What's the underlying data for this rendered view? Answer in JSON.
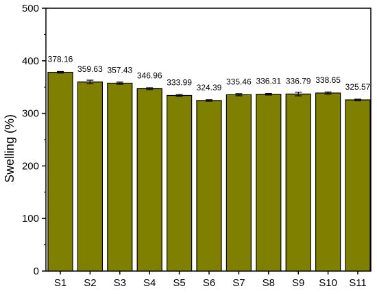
{
  "chart_data": {
    "type": "bar",
    "title": "",
    "xlabel": "",
    "ylabel": "Swelling (%)",
    "categories": [
      "S1",
      "S2",
      "S3",
      "S4",
      "S5",
      "S6",
      "S7",
      "S8",
      "S9",
      "S10",
      "S11"
    ],
    "values": [
      378.16,
      359.63,
      357.43,
      346.96,
      333.99,
      324.39,
      335.46,
      336.31,
      336.79,
      338.65,
      325.57
    ],
    "value_labels": [
      "378.16",
      "359.63",
      "357.43",
      "346.96",
      "333.99",
      "324.39",
      "335.46",
      "336.31",
      "336.79",
      "338.65",
      "325.57"
    ],
    "errors": [
      1.5,
      3.5,
      2.0,
      2.0,
      2.0,
      1.5,
      2.0,
      1.5,
      3.5,
      2.0,
      1.5
    ],
    "ylim": [
      0,
      500
    ],
    "yticks": [
      0,
      100,
      200,
      300,
      400,
      500
    ],
    "ytick_labels": [
      "0",
      "100",
      "200",
      "300",
      "400",
      "500"
    ],
    "grid": false,
    "legend": "none",
    "bar_color": "#808000",
    "error_bar_color": "#000000"
  }
}
